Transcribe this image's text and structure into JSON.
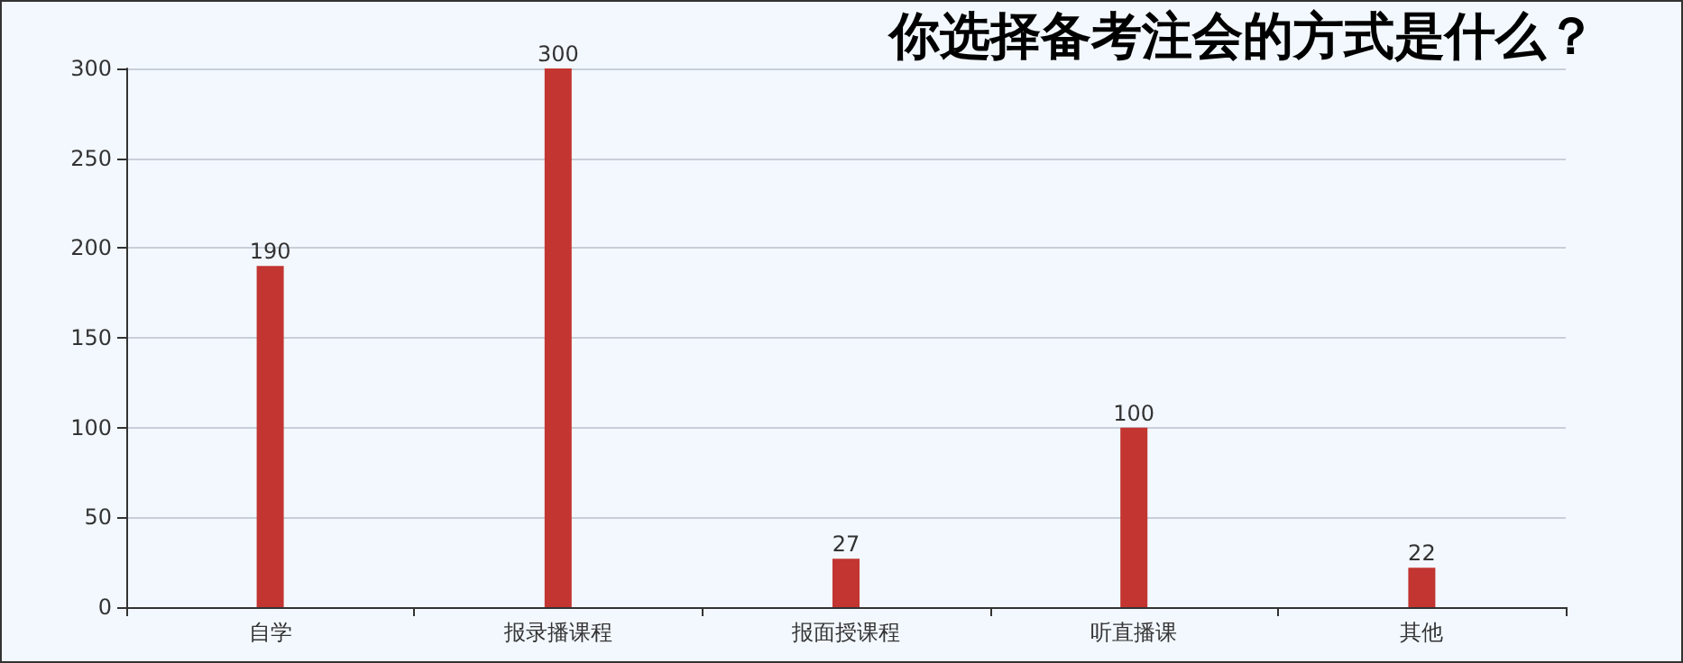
{
  "chart_data": {
    "type": "bar",
    "title": "你选择备考注会的方式是什么？",
    "categories": [
      "自学",
      "报录播课程",
      "报面授课程",
      "听直播课",
      "其他"
    ],
    "values": [
      190,
      300,
      27,
      100,
      22
    ],
    "color": "#c23531",
    "ylim": [
      0,
      300
    ],
    "yticks": [
      0,
      50,
      100,
      150,
      200,
      250,
      300
    ],
    "grid": "y",
    "data_labels": true
  }
}
